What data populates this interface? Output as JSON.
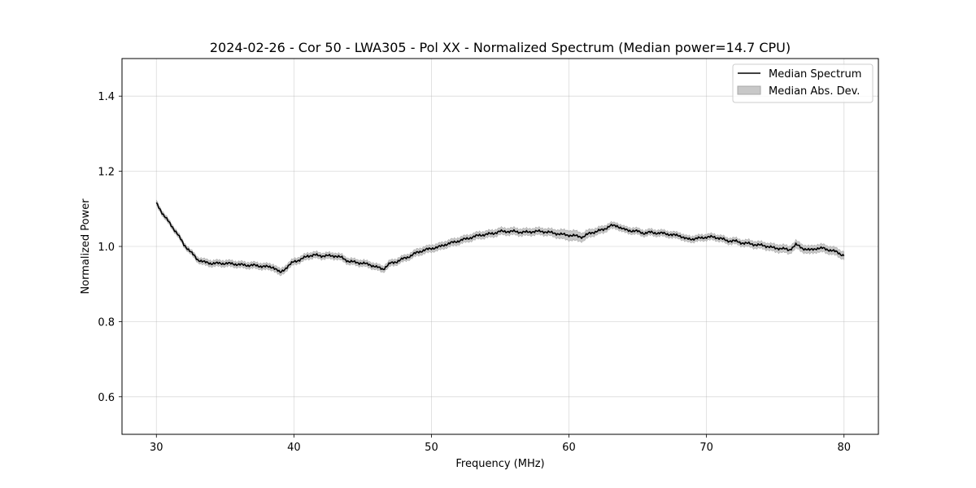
{
  "chart_data": {
    "type": "line",
    "title": "2024-02-26 - Cor 50 - LWA305 - Pol XX - Normalized Spectrum (Median power=14.7 CPU)",
    "xlabel": "Frequency (MHz)",
    "ylabel": "Normalized Power",
    "xlim": [
      27.5,
      82.5
    ],
    "ylim": [
      0.5,
      1.5
    ],
    "xticks": [
      30,
      40,
      50,
      60,
      70,
      80
    ],
    "yticks": [
      0.6,
      0.8,
      1.0,
      1.2,
      1.4
    ],
    "xtick_labels": [
      "30",
      "40",
      "50",
      "60",
      "70",
      "80"
    ],
    "ytick_labels": [
      "0.6",
      "0.8",
      "1.0",
      "1.2",
      "1.4"
    ],
    "grid": true,
    "legend_position": "top-right",
    "legend": {
      "median_label": "Median Spectrum",
      "mad_label": "Median Abs. Dev."
    },
    "colors": {
      "median_line": "#000000",
      "mad_fill": "#c8c8c8",
      "mad_edge": "#a8a8a8"
    },
    "series": [
      {
        "name": "Median Spectrum",
        "x": [
          30.0,
          30.5,
          31.0,
          31.5,
          32.0,
          32.5,
          33.0,
          33.5,
          34.0,
          34.5,
          35.0,
          35.5,
          36.0,
          36.5,
          37.0,
          37.5,
          38.0,
          38.5,
          39.0,
          39.5,
          40.0,
          40.5,
          41.0,
          41.5,
          42.0,
          42.5,
          43.0,
          43.5,
          44.0,
          44.5,
          45.0,
          45.5,
          46.0,
          46.5,
          47.0,
          47.5,
          48.0,
          48.5,
          49.0,
          49.5,
          50.0,
          50.5,
          51.0,
          51.5,
          52.0,
          52.5,
          53.0,
          53.5,
          54.0,
          54.5,
          55.0,
          55.5,
          56.0,
          56.5,
          57.0,
          57.5,
          58.0,
          58.5,
          59.0,
          59.5,
          60.0,
          60.5,
          61.0,
          61.5,
          62.0,
          62.5,
          63.0,
          63.5,
          64.0,
          64.5,
          65.0,
          65.5,
          66.0,
          66.5,
          67.0,
          67.5,
          68.0,
          68.5,
          69.0,
          69.5,
          70.0,
          70.5,
          71.0,
          71.5,
          72.0,
          72.5,
          73.0,
          73.5,
          74.0,
          74.5,
          75.0,
          75.5,
          76.0,
          76.5,
          77.0,
          77.5,
          78.0,
          78.5,
          79.0,
          79.5,
          80.0
        ],
        "y": [
          1.115,
          1.085,
          1.06,
          1.035,
          1.005,
          0.985,
          0.965,
          0.958,
          0.955,
          0.955,
          0.955,
          0.954,
          0.952,
          0.95,
          0.95,
          0.948,
          0.946,
          0.945,
          0.93,
          0.945,
          0.96,
          0.965,
          0.975,
          0.977,
          0.975,
          0.975,
          0.975,
          0.97,
          0.96,
          0.958,
          0.955,
          0.952,
          0.945,
          0.94,
          0.955,
          0.96,
          0.968,
          0.975,
          0.985,
          0.99,
          0.995,
          0.998,
          1.005,
          1.01,
          1.015,
          1.02,
          1.025,
          1.03,
          1.032,
          1.035,
          1.04,
          1.04,
          1.04,
          1.038,
          1.038,
          1.04,
          1.04,
          1.038,
          1.035,
          1.032,
          1.03,
          1.028,
          1.025,
          1.035,
          1.04,
          1.045,
          1.055,
          1.055,
          1.045,
          1.042,
          1.04,
          1.035,
          1.038,
          1.035,
          1.035,
          1.03,
          1.03,
          1.02,
          1.02,
          1.022,
          1.025,
          1.025,
          1.022,
          1.015,
          1.015,
          1.01,
          1.008,
          1.005,
          1.003,
          1.0,
          0.995,
          0.995,
          0.99,
          1.005,
          0.995,
          0.99,
          0.995,
          0.995,
          0.99,
          0.985,
          0.975
        ]
      },
      {
        "name": "Median Abs. Dev.",
        "mad": [
          0.006,
          0.006,
          0.006,
          0.006,
          0.006,
          0.006,
          0.007,
          0.008,
          0.008,
          0.008,
          0.008,
          0.008,
          0.008,
          0.008,
          0.008,
          0.008,
          0.008,
          0.008,
          0.009,
          0.008,
          0.008,
          0.008,
          0.008,
          0.008,
          0.008,
          0.008,
          0.008,
          0.008,
          0.008,
          0.008,
          0.008,
          0.008,
          0.008,
          0.008,
          0.008,
          0.008,
          0.008,
          0.008,
          0.009,
          0.009,
          0.009,
          0.009,
          0.009,
          0.009,
          0.009,
          0.009,
          0.009,
          0.009,
          0.009,
          0.009,
          0.009,
          0.009,
          0.009,
          0.009,
          0.009,
          0.009,
          0.009,
          0.009,
          0.01,
          0.012,
          0.013,
          0.013,
          0.011,
          0.01,
          0.009,
          0.009,
          0.008,
          0.008,
          0.008,
          0.008,
          0.008,
          0.008,
          0.008,
          0.008,
          0.008,
          0.008,
          0.008,
          0.008,
          0.008,
          0.008,
          0.008,
          0.008,
          0.008,
          0.008,
          0.008,
          0.008,
          0.009,
          0.009,
          0.009,
          0.009,
          0.01,
          0.01,
          0.01,
          0.01,
          0.01,
          0.01,
          0.01,
          0.01,
          0.01,
          0.01,
          0.01
        ]
      }
    ]
  }
}
